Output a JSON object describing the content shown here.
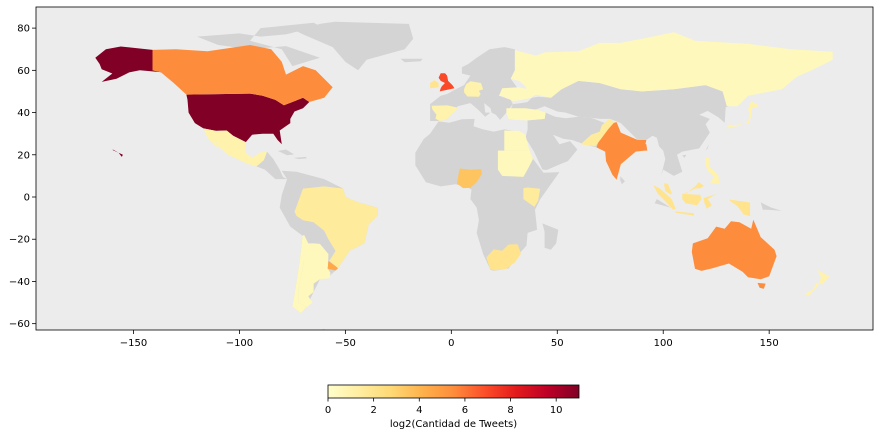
{
  "chart_data": {
    "type": "choropleth",
    "x_ticks": [
      -150,
      -100,
      -50,
      0,
      50,
      100,
      150
    ],
    "y_ticks": [
      80,
      60,
      40,
      20,
      0,
      -20,
      -40,
      -60
    ],
    "xlim": [
      -196,
      199
    ],
    "ylim": [
      -63,
      90
    ],
    "colorbar": {
      "label": "log2(Cantidad de Tweets)",
      "ticks": [
        0,
        2,
        4,
        6,
        8,
        10
      ],
      "range": [
        0,
        11
      ],
      "colormap": "YlOrRd"
    },
    "colors": {
      "ocean": "#ececec",
      "no_data_land": "#d4d4d4"
    },
    "countries": [
      {
        "name": "United States",
        "value": 11
      },
      {
        "name": "Alaska",
        "value": 11
      },
      {
        "name": "Hawaii",
        "value": 11
      },
      {
        "name": "Canada",
        "value": 5.5
      },
      {
        "name": "United Kingdom",
        "value": 7
      },
      {
        "name": "Ireland",
        "value": 2
      },
      {
        "name": "Spain",
        "value": 1
      },
      {
        "name": "Russia",
        "value": 0.5
      },
      {
        "name": "Ukraine",
        "value": 0.5
      },
      {
        "name": "Turkey",
        "value": 0.5
      },
      {
        "name": "Egypt",
        "value": 0.5
      },
      {
        "name": "Sudan",
        "value": 0.5
      },
      {
        "name": "India",
        "value": 5.5
      },
      {
        "name": "Bangladesh",
        "value": 5.5
      },
      {
        "name": "Pakistan",
        "value": 1.5
      },
      {
        "name": "Mexico",
        "value": 1
      },
      {
        "name": "Brazil",
        "value": 1.5
      },
      {
        "name": "Argentina",
        "value": 0.5
      },
      {
        "name": "Chile",
        "value": 0.5
      },
      {
        "name": "Uruguay",
        "value": 4.5
      },
      {
        "name": "South Africa",
        "value": 2
      },
      {
        "name": "Nigeria",
        "value": 3.5
      },
      {
        "name": "Kenya",
        "value": 1.5
      },
      {
        "name": "Australia",
        "value": 5.5
      },
      {
        "name": "New Zealand",
        "value": 1
      },
      {
        "name": "Japan",
        "value": 1
      },
      {
        "name": "Philippines",
        "value": 1
      },
      {
        "name": "Indonesia",
        "value": 2
      },
      {
        "name": "Malaysia",
        "value": 2
      },
      {
        "name": "Germany",
        "value": 1
      }
    ]
  }
}
